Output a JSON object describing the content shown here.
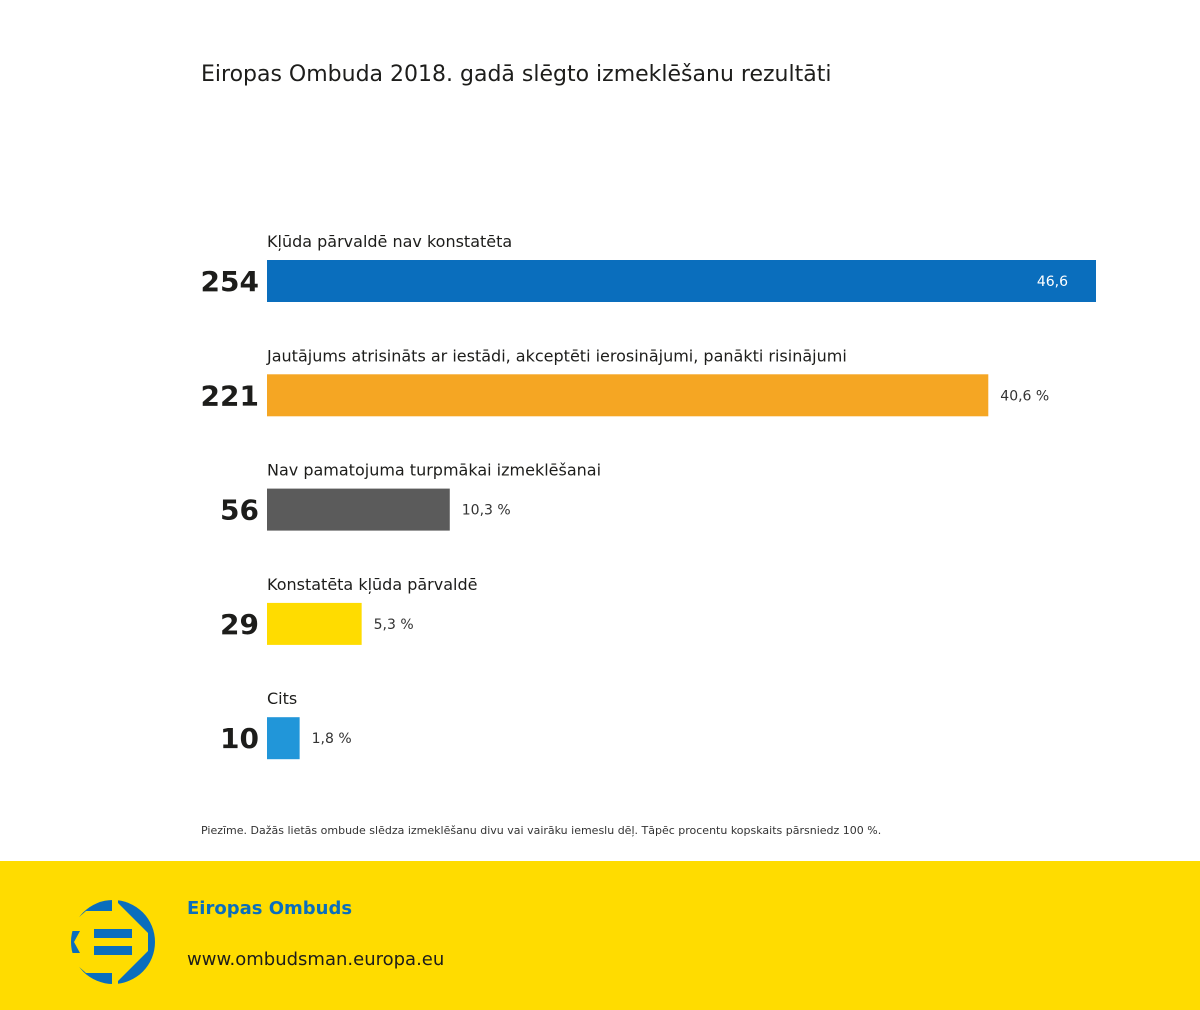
{
  "page": {
    "title": "Eiropas Ombuda 2018. gadā slēgto izmeklēšanu rezultāti",
    "note": "Piezīme. Dažās lietās ombude slēdza izmeklēšanu divu vai vairāku iemeslu dēļ. Tāpēc procentu kopskaits pārsniedz 100 %."
  },
  "footer": {
    "org_name": "Eiropas Ombuds",
    "url": "www.ombudsman.europa.eu",
    "logo_icon": "european-ombudsman-logo-icon",
    "background_color": "#ffdc00",
    "accent_color": "#0a6ebd"
  },
  "chart_data": {
    "type": "bar",
    "orientation": "horizontal",
    "title": "Eiropas Ombuda 2018. gadā slēgto izmeklēšanu rezultāti",
    "xlabel": "",
    "ylabel": "",
    "grid": false,
    "legend": "none",
    "xlim": [
      0,
      254
    ],
    "categories": [
      "Kļūda pārvaldē nav konstatēta",
      "Jautājums atrisināts ar iestādi, akceptēti ierosinājumi, panākti risinājumi",
      "Nav pamatojuma turpmākai izmeklēšanai",
      "Konstatēta kļūda pārvaldē",
      "Cits"
    ],
    "values": [
      254,
      221,
      56,
      29,
      10
    ],
    "percent_labels": [
      "46,6",
      "40,6 %",
      "10,3 %",
      "5,3 %",
      "1,8 %"
    ],
    "percent_values": [
      46.6,
      40.6,
      10.3,
      5.3,
      1.8
    ],
    "colors": [
      "#0a6ebd",
      "#f5a623",
      "#5b5b5b",
      "#ffdc00",
      "#2196d9"
    ],
    "percent_label_inside": [
      true,
      false,
      false,
      false,
      false
    ]
  }
}
